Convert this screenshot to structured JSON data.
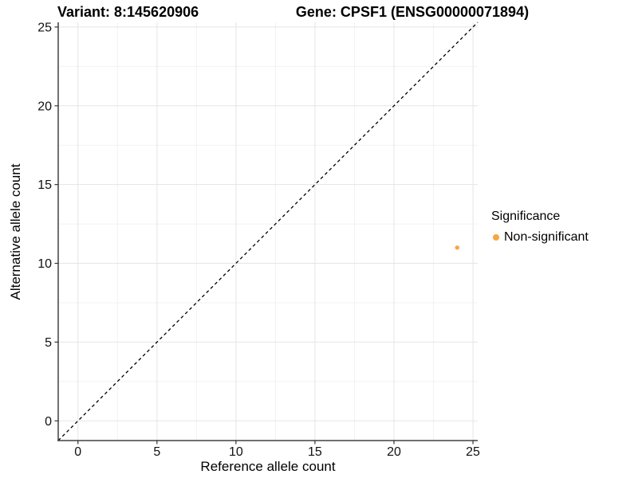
{
  "titles": {
    "variant": "Variant: 8:145620906",
    "gene": "Gene: CPSF1 (ENSG00000071894)"
  },
  "chart_data": {
    "type": "scatter",
    "xlabel": "Reference allele count",
    "ylabel": "Alternative allele count",
    "xlim": [
      -1.25,
      25.3
    ],
    "ylim": [
      -1.25,
      25.3
    ],
    "xticks": [
      0,
      5,
      10,
      15,
      20,
      25
    ],
    "yticks": [
      0,
      5,
      10,
      15,
      20,
      25
    ],
    "xticks_minor": [
      2.5,
      7.5,
      12.5,
      17.5,
      22.5
    ],
    "yticks_minor": [
      2.5,
      7.5,
      12.5,
      17.5,
      22.5
    ],
    "grid": true,
    "identity_line": {
      "style": "dashed",
      "color": "#000000",
      "from": [
        -1.25,
        -1.25
      ],
      "to": [
        25.3,
        25.3
      ]
    },
    "series": [
      {
        "name": "Non-significant",
        "color": "#F9A63C",
        "points": [
          {
            "x": 24,
            "y": 11
          }
        ]
      }
    ],
    "legend": {
      "title": "Significance",
      "position": "right",
      "items": [
        {
          "label": "Non-significant",
          "color": "#F9A63C"
        }
      ]
    }
  },
  "style_colors": {
    "grid_major": "#E5E5E5",
    "grid_minor": "#F2F2F2",
    "axis_line": "#404040",
    "tick_mark": "#333333",
    "tick_label": "#111111",
    "point": "#F9A63C"
  }
}
